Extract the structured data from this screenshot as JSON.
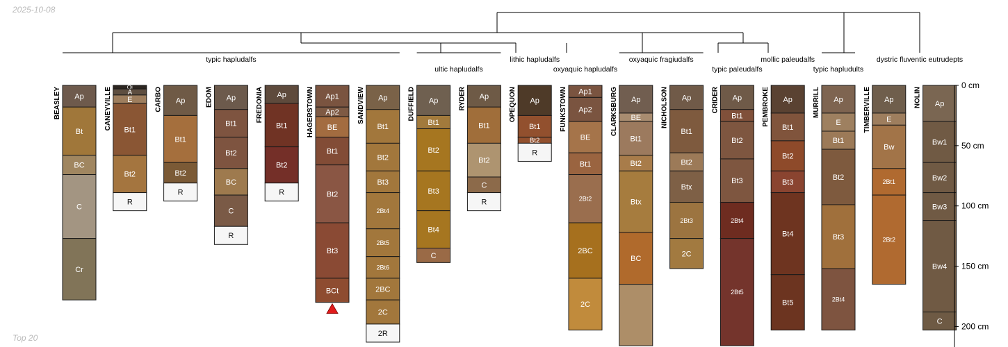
{
  "header": {
    "date": "2025-10-08"
  },
  "footer": {
    "caption": "Top 20"
  },
  "chart_data": {
    "type": "soil-profile-sketch",
    "depth_unit": "cm",
    "depth_axis": {
      "ticks": [
        0,
        50,
        100,
        150,
        200
      ],
      "tick_labels": [
        "0 cm",
        "50 cm",
        "100 cm",
        "150 cm",
        "200 cm"
      ],
      "range": [
        0,
        216
      ]
    },
    "taxa": [
      {
        "label": "typic hapludalfs",
        "profiles": [
          "BEASLEY",
          "CANEYVILLE",
          "CARBO",
          "EDOM",
          "FREDONIA",
          "HAGERSTOWN",
          "SANDVIEW"
        ]
      },
      {
        "label": "ultic hapludalfs",
        "profiles": [
          "DUFFIELD",
          "RYDER"
        ]
      },
      {
        "label": "lithic hapludalfs",
        "profiles": [
          "OPEQUON"
        ]
      },
      {
        "label": "oxyaquic hapludalfs",
        "profiles": [
          "FUNKSTOWN"
        ]
      },
      {
        "label": "oxyaquic fragiudalfs",
        "profiles": [
          "CLARKSBURG",
          "NICHOLSON"
        ]
      },
      {
        "label": "typic paleudalfs",
        "profiles": [
          "CRIDER"
        ]
      },
      {
        "label": "mollic paleudalfs",
        "profiles": [
          "PEMBROKE"
        ]
      },
      {
        "label": "typic hapludults",
        "profiles": [
          "MURRILL"
        ]
      },
      {
        "label": "dystric fluventic eutrudepts",
        "profiles": [
          "TIMBERVILLE",
          "NOLIN"
        ]
      }
    ],
    "profiles": [
      {
        "name": "BEASLEY",
        "horizons": [
          {
            "name": "Ap",
            "top": 0,
            "bottom": 18,
            "color": "#6e5a4c"
          },
          {
            "name": "Bt",
            "top": 18,
            "bottom": 58,
            "color": "#a0773a"
          },
          {
            "name": "BC",
            "top": 58,
            "bottom": 74,
            "color": "#a08660"
          },
          {
            "name": "C",
            "top": 74,
            "bottom": 127,
            "color": "#a39582"
          },
          {
            "name": "Cr",
            "top": 127,
            "bottom": 178,
            "color": "#817458"
          }
        ]
      },
      {
        "name": "CANEYVILLE",
        "horizons": [
          {
            "name": "Oi",
            "top": 0,
            "bottom": 3,
            "color": "#2c2620"
          },
          {
            "name": "A",
            "top": 3,
            "bottom": 8,
            "color": "#5e4e40"
          },
          {
            "name": "E",
            "top": 8,
            "bottom": 15,
            "color": "#9e7e5e"
          },
          {
            "name": "Bt1",
            "top": 15,
            "bottom": 58,
            "color": "#8a5634"
          },
          {
            "name": "Bt2",
            "top": 58,
            "bottom": 89,
            "color": "#a4753f"
          },
          {
            "name": "R",
            "top": 89,
            "bottom": 104,
            "color": "#f6f6f6"
          }
        ]
      },
      {
        "name": "CARBO",
        "horizons": [
          {
            "name": "Ap",
            "top": 0,
            "bottom": 25,
            "color": "#6f5a46"
          },
          {
            "name": "Bt1",
            "top": 25,
            "bottom": 64,
            "color": "#a56f3d"
          },
          {
            "name": "Bt2",
            "top": 64,
            "bottom": 81,
            "color": "#7b5a36"
          },
          {
            "name": "R",
            "top": 81,
            "bottom": 96,
            "color": "#f6f6f6"
          }
        ]
      },
      {
        "name": "EDOM",
        "horizons": [
          {
            "name": "Ap",
            "top": 0,
            "bottom": 20,
            "color": "#6c5a4c"
          },
          {
            "name": "Bt1",
            "top": 20,
            "bottom": 43,
            "color": "#7e5440"
          },
          {
            "name": "Bt2",
            "top": 43,
            "bottom": 69,
            "color": "#7e5440"
          },
          {
            "name": "BC",
            "top": 69,
            "bottom": 91,
            "color": "#9e7a4e"
          },
          {
            "name": "C",
            "top": 91,
            "bottom": 117,
            "color": "#7a5a46"
          },
          {
            "name": "R",
            "top": 117,
            "bottom": 132,
            "color": "#f6f6f6"
          }
        ]
      },
      {
        "name": "FREDONIA",
        "horizons": [
          {
            "name": "Ap",
            "top": 0,
            "bottom": 15,
            "color": "#5e4a3c"
          },
          {
            "name": "Bt1",
            "top": 15,
            "bottom": 51,
            "color": "#703324"
          },
          {
            "name": "Bt2",
            "top": 51,
            "bottom": 81,
            "color": "#742f28"
          },
          {
            "name": "R",
            "top": 81,
            "bottom": 96,
            "color": "#f6f6f6"
          }
        ]
      },
      {
        "name": "HAGERSTOWN",
        "horizons": [
          {
            "name": "Ap1",
            "top": 0,
            "bottom": 18,
            "color": "#7a5440"
          },
          {
            "name": "Ap2",
            "top": 18,
            "bottom": 26,
            "color": "#7e5a44"
          },
          {
            "name": "BE",
            "top": 26,
            "bottom": 43,
            "color": "#a36c40"
          },
          {
            "name": "Bt1",
            "top": 43,
            "bottom": 66,
            "color": "#824c36"
          },
          {
            "name": "Bt2",
            "top": 66,
            "bottom": 114,
            "color": "#8a5644"
          },
          {
            "name": "Bt3",
            "top": 114,
            "bottom": 160,
            "color": "#8a4a34"
          },
          {
            "name": "BCt",
            "top": 160,
            "bottom": 180,
            "color": "#8e4c30"
          }
        ]
      },
      {
        "name": "SANDVIEW",
        "horizons": [
          {
            "name": "Ap",
            "top": 0,
            "bottom": 20,
            "color": "#7a6248"
          },
          {
            "name": "Bt1",
            "top": 20,
            "bottom": 48,
            "color": "#a2773c"
          },
          {
            "name": "Bt2",
            "top": 48,
            "bottom": 71,
            "color": "#a2773c"
          },
          {
            "name": "Bt3",
            "top": 71,
            "bottom": 89,
            "color": "#a2773c"
          },
          {
            "name": "2Bt4",
            "top": 89,
            "bottom": 119,
            "color": "#a2773c"
          },
          {
            "name": "2Bt5",
            "top": 119,
            "bottom": 142,
            "color": "#a2773c"
          },
          {
            "name": "2Bt6",
            "top": 142,
            "bottom": 160,
            "color": "#a2773c"
          },
          {
            "name": "2BC",
            "top": 160,
            "bottom": 178,
            "color": "#a2773c"
          },
          {
            "name": "2C",
            "top": 178,
            "bottom": 198,
            "color": "#a2773c"
          },
          {
            "name": "2R",
            "top": 198,
            "bottom": 213,
            "color": "#f6f6f6"
          }
        ]
      },
      {
        "name": "DUFFIELD",
        "horizons": [
          {
            "name": "Ap",
            "top": 0,
            "bottom": 25,
            "color": "#6f6050"
          },
          {
            "name": "Bt1",
            "top": 25,
            "bottom": 36,
            "color": "#a27a3c"
          },
          {
            "name": "Bt2",
            "top": 36,
            "bottom": 71,
            "color": "#a67620"
          },
          {
            "name": "Bt3",
            "top": 71,
            "bottom": 104,
            "color": "#a67620"
          },
          {
            "name": "Bt4",
            "top": 104,
            "bottom": 135,
            "color": "#a67620"
          },
          {
            "name": "C",
            "top": 135,
            "bottom": 147,
            "color": "#9a6a46"
          }
        ]
      },
      {
        "name": "RYDER",
        "horizons": [
          {
            "name": "Ap",
            "top": 0,
            "bottom": 18,
            "color": "#6e5a46"
          },
          {
            "name": "Bt1",
            "top": 18,
            "bottom": 48,
            "color": "#a06e3a"
          },
          {
            "name": "Bt2",
            "top": 48,
            "bottom": 76,
            "color": "#ae9470"
          },
          {
            "name": "C",
            "top": 76,
            "bottom": 89,
            "color": "#8c6a4a"
          },
          {
            "name": "R",
            "top": 89,
            "bottom": 104,
            "color": "#f6f6f6"
          }
        ]
      },
      {
        "name": "OPEQUON",
        "horizons": [
          {
            "name": "Ap",
            "top": 0,
            "bottom": 25,
            "color": "#4e3a28"
          },
          {
            "name": "Bt1",
            "top": 25,
            "bottom": 43,
            "color": "#92502e"
          },
          {
            "name": "Bt2",
            "top": 43,
            "bottom": 48,
            "color": "#92502e"
          },
          {
            "name": "R",
            "top": 48,
            "bottom": 63,
            "color": "#f6f6f6"
          }
        ]
      },
      {
        "name": "FUNKSTOWN",
        "horizons": [
          {
            "name": "Ap1",
            "top": 0,
            "bottom": 10,
            "color": "#7a5440"
          },
          {
            "name": "Ap2",
            "top": 10,
            "bottom": 30,
            "color": "#7a5440"
          },
          {
            "name": "BE",
            "top": 30,
            "bottom": 56,
            "color": "#a5744a"
          },
          {
            "name": "Bt1",
            "top": 56,
            "bottom": 74,
            "color": "#9a6440"
          },
          {
            "name": "2Bt2",
            "top": 74,
            "bottom": 114,
            "color": "#9a6e4e"
          },
          {
            "name": "2BC",
            "top": 114,
            "bottom": 160,
            "color": "#a6701e"
          },
          {
            "name": "2C",
            "top": 160,
            "bottom": 203,
            "color": "#c18b3c"
          }
        ]
      },
      {
        "name": "CLARKSBURG",
        "horizons": [
          {
            "name": "Ap",
            "top": 0,
            "bottom": 23,
            "color": "#715e50"
          },
          {
            "name": "BE",
            "top": 23,
            "bottom": 30,
            "color": "#a88c70"
          },
          {
            "name": "Bt1",
            "top": 30,
            "bottom": 58,
            "color": "#9c7a5e"
          },
          {
            "name": "Bt2",
            "top": 58,
            "bottom": 71,
            "color": "#a87c4a"
          },
          {
            "name": "Btx",
            "top": 71,
            "bottom": 122,
            "color": "#a67c3e"
          },
          {
            "name": "BC",
            "top": 122,
            "bottom": 165,
            "color": "#b06a2c"
          },
          {
            "name": "",
            "top": 165,
            "bottom": 216,
            "color": "#ad8e68"
          }
        ]
      },
      {
        "name": "NICHOLSON",
        "horizons": [
          {
            "name": "Ap",
            "top": 0,
            "bottom": 20,
            "color": "#705a48"
          },
          {
            "name": "Bt1",
            "top": 20,
            "bottom": 56,
            "color": "#7e5a3e"
          },
          {
            "name": "Bt2",
            "top": 56,
            "bottom": 71,
            "color": "#9c7a58"
          },
          {
            "name": "Btx",
            "top": 71,
            "bottom": 97,
            "color": "#7e6046"
          },
          {
            "name": "2Bt3",
            "top": 97,
            "bottom": 127,
            "color": "#9c7440"
          },
          {
            "name": "2C",
            "top": 127,
            "bottom": 152,
            "color": "#a27a40"
          }
        ]
      },
      {
        "name": "CRIDER",
        "horizons": [
          {
            "name": "Ap",
            "top": 0,
            "bottom": 20,
            "color": "#6f5a48"
          },
          {
            "name": "Bt1",
            "top": 20,
            "bottom": 30,
            "color": "#80503a"
          },
          {
            "name": "Bt2",
            "top": 30,
            "bottom": 61,
            "color": "#7e5640"
          },
          {
            "name": "Bt3",
            "top": 61,
            "bottom": 97,
            "color": "#7e5640"
          },
          {
            "name": "2Bt4",
            "top": 97,
            "bottom": 127,
            "color": "#6e2c20"
          },
          {
            "name": "2Bt5",
            "top": 127,
            "bottom": 216,
            "color": "#74342c"
          }
        ]
      },
      {
        "name": "PEMBROKE",
        "horizons": [
          {
            "name": "Ap",
            "top": 0,
            "bottom": 23,
            "color": "#5a4232"
          },
          {
            "name": "Bt1",
            "top": 23,
            "bottom": 46,
            "color": "#80543c"
          },
          {
            "name": "Bt2",
            "top": 46,
            "bottom": 71,
            "color": "#8e4a2a"
          },
          {
            "name": "Bt3",
            "top": 71,
            "bottom": 89,
            "color": "#8a4430"
          },
          {
            "name": "Bt4",
            "top": 89,
            "bottom": 157,
            "color": "#6e3420"
          },
          {
            "name": "Bt5",
            "top": 157,
            "bottom": 203,
            "color": "#6c3420"
          }
        ]
      },
      {
        "name": "MURRILL",
        "horizons": [
          {
            "name": "Ap",
            "top": 0,
            "bottom": 23,
            "color": "#7e6450"
          },
          {
            "name": "E",
            "top": 23,
            "bottom": 38,
            "color": "#9e8060"
          },
          {
            "name": "Bt1",
            "top": 38,
            "bottom": 53,
            "color": "#9c7a58"
          },
          {
            "name": "Bt2",
            "top": 53,
            "bottom": 99,
            "color": "#7e5a3e"
          },
          {
            "name": "Bt3",
            "top": 99,
            "bottom": 152,
            "color": "#a0703c"
          },
          {
            "name": "2Bt4",
            "top": 152,
            "bottom": 203,
            "color": "#7e5440"
          }
        ]
      },
      {
        "name": "TIMBERVILLE",
        "horizons": [
          {
            "name": "Ap",
            "top": 0,
            "bottom": 23,
            "color": "#6f5e4c"
          },
          {
            "name": "E",
            "top": 23,
            "bottom": 33,
            "color": "#9e7e5e"
          },
          {
            "name": "Bw",
            "top": 33,
            "bottom": 69,
            "color": "#a27448"
          },
          {
            "name": "2Bt1",
            "top": 69,
            "bottom": 91,
            "color": "#b06a30"
          },
          {
            "name": "2Bt2",
            "top": 91,
            "bottom": 165,
            "color": "#b06a30"
          }
        ]
      },
      {
        "name": "NOLIN",
        "horizons": [
          {
            "name": "Ap",
            "top": 0,
            "bottom": 30,
            "color": "#7a6652"
          },
          {
            "name": "Bw1",
            "top": 30,
            "bottom": 64,
            "color": "#705a44"
          },
          {
            "name": "Bw2",
            "top": 64,
            "bottom": 89,
            "color": "#705a44"
          },
          {
            "name": "Bw3",
            "top": 89,
            "bottom": 112,
            "color": "#705a44"
          },
          {
            "name": "Bw4",
            "top": 112,
            "bottom": 188,
            "color": "#705a44"
          },
          {
            "name": "C",
            "top": 188,
            "bottom": 203,
            "color": "#6e5a44"
          }
        ]
      }
    ]
  }
}
